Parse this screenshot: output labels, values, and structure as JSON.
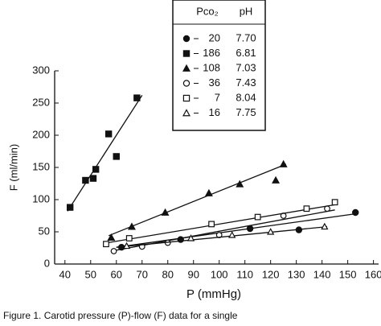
{
  "chart_data": {
    "type": "scatter",
    "x_label": "P (mmHg)",
    "y_label": "F (ml/min)",
    "legend_header": [
      "Pco₂",
      "pH"
    ],
    "caption": "Figure 1. Carotid pressure (P)-flow (F) data for a single",
    "xlim": [
      36,
      162
    ],
    "ylim": [
      0,
      300
    ],
    "xticks": [
      40,
      50,
      60,
      70,
      80,
      90,
      100,
      110,
      120,
      130,
      140,
      150,
      160
    ],
    "yticks": [
      0,
      50,
      100,
      150,
      200,
      250,
      300
    ],
    "series": [
      {
        "name": "20",
        "pH": "7.70",
        "marker": "circle",
        "filled": true,
        "x": [
          62,
          85,
          112,
          131,
          153
        ],
        "values": [
          26,
          38,
          55,
          53,
          80
        ],
        "fit_x": [
          60,
          153
        ],
        "fit_y": [
          26,
          78
        ]
      },
      {
        "name": "186",
        "pH": "6.81",
        "marker": "square",
        "filled": true,
        "x": [
          42,
          48,
          51,
          52,
          57,
          60,
          68
        ],
        "values": [
          88,
          130,
          133,
          147,
          202,
          167,
          258
        ],
        "fit_x": [
          41,
          70
        ],
        "fit_y": [
          82,
          262
        ]
      },
      {
        "name": "108",
        "pH": "7.03",
        "marker": "triangle",
        "filled": true,
        "x": [
          58,
          66,
          79,
          96,
          108,
          122,
          125
        ],
        "values": [
          41,
          58,
          80,
          110,
          124,
          130,
          155
        ],
        "fit_x": [
          57,
          126
        ],
        "fit_y": [
          44,
          155
        ]
      },
      {
        "name": "36",
        "pH": "7.43",
        "marker": "circle",
        "filled": false,
        "x": [
          59,
          70,
          80,
          100,
          125,
          142
        ],
        "values": [
          20,
          27,
          33,
          45,
          75,
          86
        ],
        "fit_x": [
          58,
          145
        ],
        "fit_y": [
          20,
          84
        ]
      },
      {
        "name": "7",
        "pH": "8.04",
        "marker": "square",
        "filled": false,
        "x": [
          56,
          65,
          97,
          115,
          134,
          145
        ],
        "values": [
          31,
          40,
          62,
          73,
          86,
          96
        ],
        "fit_x": [
          55,
          145
        ],
        "fit_y": [
          32,
          92
        ]
      },
      {
        "name": "16",
        "pH": "7.75",
        "marker": "triangle",
        "filled": false,
        "x": [
          64,
          89,
          105,
          120,
          141
        ],
        "values": [
          28,
          40,
          45,
          50,
          58
        ],
        "fit_x": [
          60,
          142
        ],
        "fit_y": [
          26,
          58
        ]
      }
    ]
  }
}
